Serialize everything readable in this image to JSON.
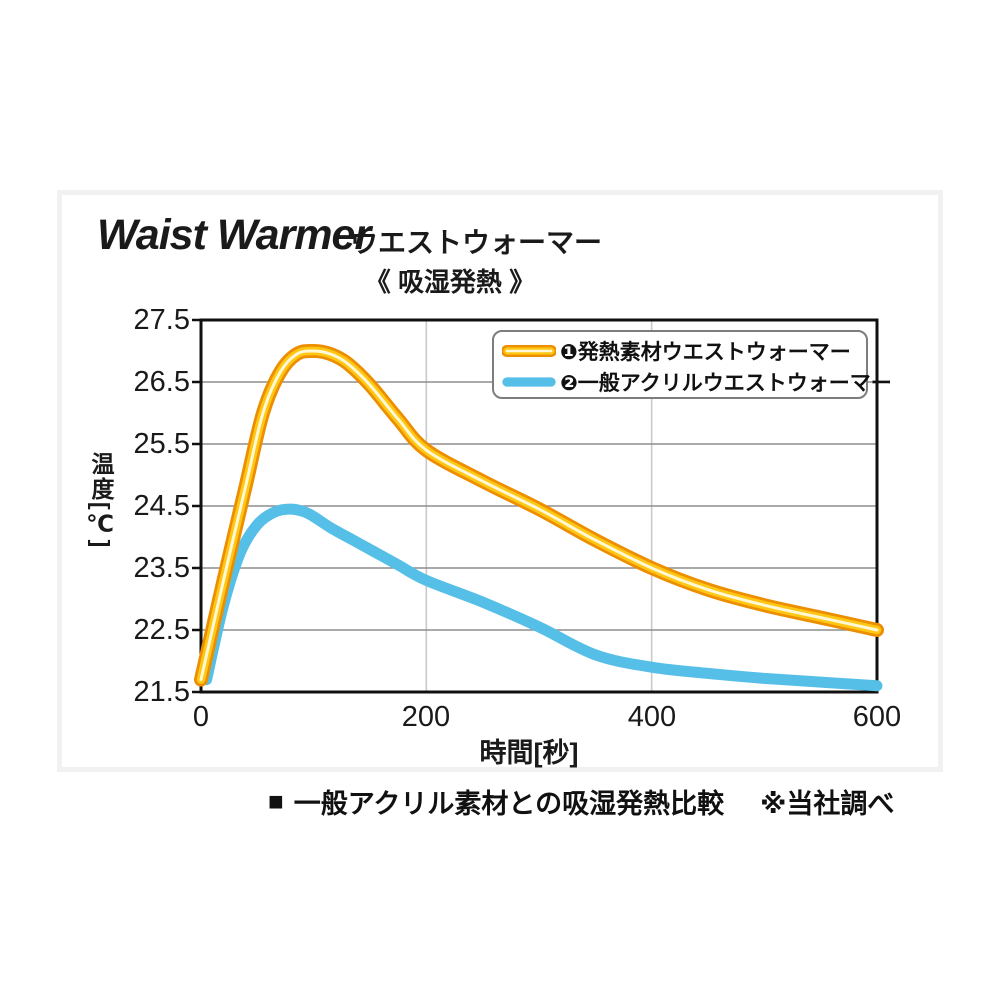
{
  "header": {
    "title_en": "Waist Warmer",
    "title_ja": "ウエストウォーマー",
    "subtitle": "《 吸湿発熱 》"
  },
  "chart_data": {
    "type": "line",
    "title": "Waist Warmer ウエストウォーマー 《 吸湿発熱 》",
    "xlabel": "時間[秒]",
    "ylabel": "温度[℃]",
    "xlim": [
      0,
      600
    ],
    "ylim": [
      21.5,
      27.5
    ],
    "xticks": [
      0,
      200,
      400,
      600
    ],
    "yticks": [
      27.5,
      26.5,
      25.5,
      24.5,
      23.5,
      22.5,
      21.5
    ],
    "grid": true,
    "legend_position": "top-right",
    "frame_color": "#101010",
    "hgrid_color": "#8d8d8d",
    "vgrid_color": "#c9c9c9",
    "series": [
      {
        "name": "❶発熱素材ウエストウォーマー",
        "style": {
          "outer": "#EC8E00",
          "mid": "#FFC713",
          "core": "#FFF8D6"
        },
        "peak": {
          "t": 100,
          "temp": 27.0
        },
        "points": [
          [
            0,
            21.7
          ],
          [
            20,
            23.3
          ],
          [
            40,
            24.85
          ],
          [
            55,
            26.0
          ],
          [
            70,
            26.65
          ],
          [
            85,
            26.95
          ],
          [
            100,
            27.0
          ],
          [
            115,
            26.95
          ],
          [
            130,
            26.8
          ],
          [
            150,
            26.45
          ],
          [
            175,
            25.9
          ],
          [
            200,
            25.4
          ],
          [
            250,
            24.9
          ],
          [
            300,
            24.45
          ],
          [
            350,
            23.95
          ],
          [
            400,
            23.5
          ],
          [
            450,
            23.15
          ],
          [
            500,
            22.9
          ],
          [
            550,
            22.7
          ],
          [
            600,
            22.5
          ]
        ]
      },
      {
        "name": "❷一般アクリルウエストウォーマー",
        "color": "#56BFE7",
        "peak": {
          "t": 80,
          "temp": 24.45
        },
        "points": [
          [
            5,
            21.7
          ],
          [
            20,
            22.9
          ],
          [
            35,
            23.75
          ],
          [
            50,
            24.2
          ],
          [
            65,
            24.4
          ],
          [
            80,
            24.45
          ],
          [
            95,
            24.38
          ],
          [
            115,
            24.15
          ],
          [
            135,
            23.95
          ],
          [
            155,
            23.75
          ],
          [
            175,
            23.55
          ],
          [
            200,
            23.3
          ],
          [
            250,
            22.95
          ],
          [
            300,
            22.55
          ],
          [
            350,
            22.1
          ],
          [
            400,
            21.9
          ],
          [
            450,
            21.8
          ],
          [
            500,
            21.72
          ],
          [
            550,
            21.66
          ],
          [
            600,
            21.6
          ]
        ]
      }
    ]
  },
  "footer": {
    "bullet": "■",
    "label": "一般アクリル素材との吸湿発熱比較",
    "note": "※当社調べ"
  }
}
